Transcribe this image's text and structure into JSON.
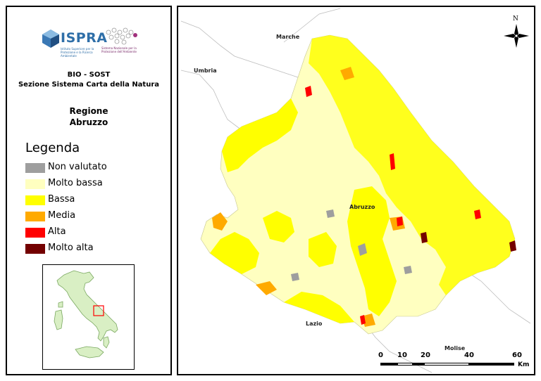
{
  "logo": {
    "brand": "ISPRA",
    "brand_subtitle": "Istituto Superiore per la Protezione e la Ricerca Ambientale",
    "partner_subtitle": "Sistema Nazionale per la Protezione dell'Ambiente"
  },
  "header": {
    "line1": "BIO - SOST",
    "line2": "Sezione Sistema Carta della Natura"
  },
  "region": {
    "line1": "Regione",
    "line2": "Abruzzo"
  },
  "legend": {
    "title": "Legenda",
    "items": [
      {
        "label": "Non valutato",
        "color": "#9e9e9e"
      },
      {
        "label": "Molto bassa",
        "color": "#ffffc0"
      },
      {
        "label": "Bassa",
        "color": "#ffff00"
      },
      {
        "label": "Media",
        "color": "#ffaa00"
      },
      {
        "label": "Alta",
        "color": "#ff0000"
      },
      {
        "label": "Molto alta",
        "color": "#730000"
      }
    ]
  },
  "map": {
    "labels": {
      "marche": "Marche",
      "umbria": "Umbria",
      "abruzzo": "Abruzzo",
      "lazio": "Lazio",
      "molise": "Molise"
    },
    "north_label": "N",
    "scale": {
      "ticks": [
        "0",
        "10",
        "20",
        "40",
        "60"
      ],
      "unit": "Km"
    }
  }
}
